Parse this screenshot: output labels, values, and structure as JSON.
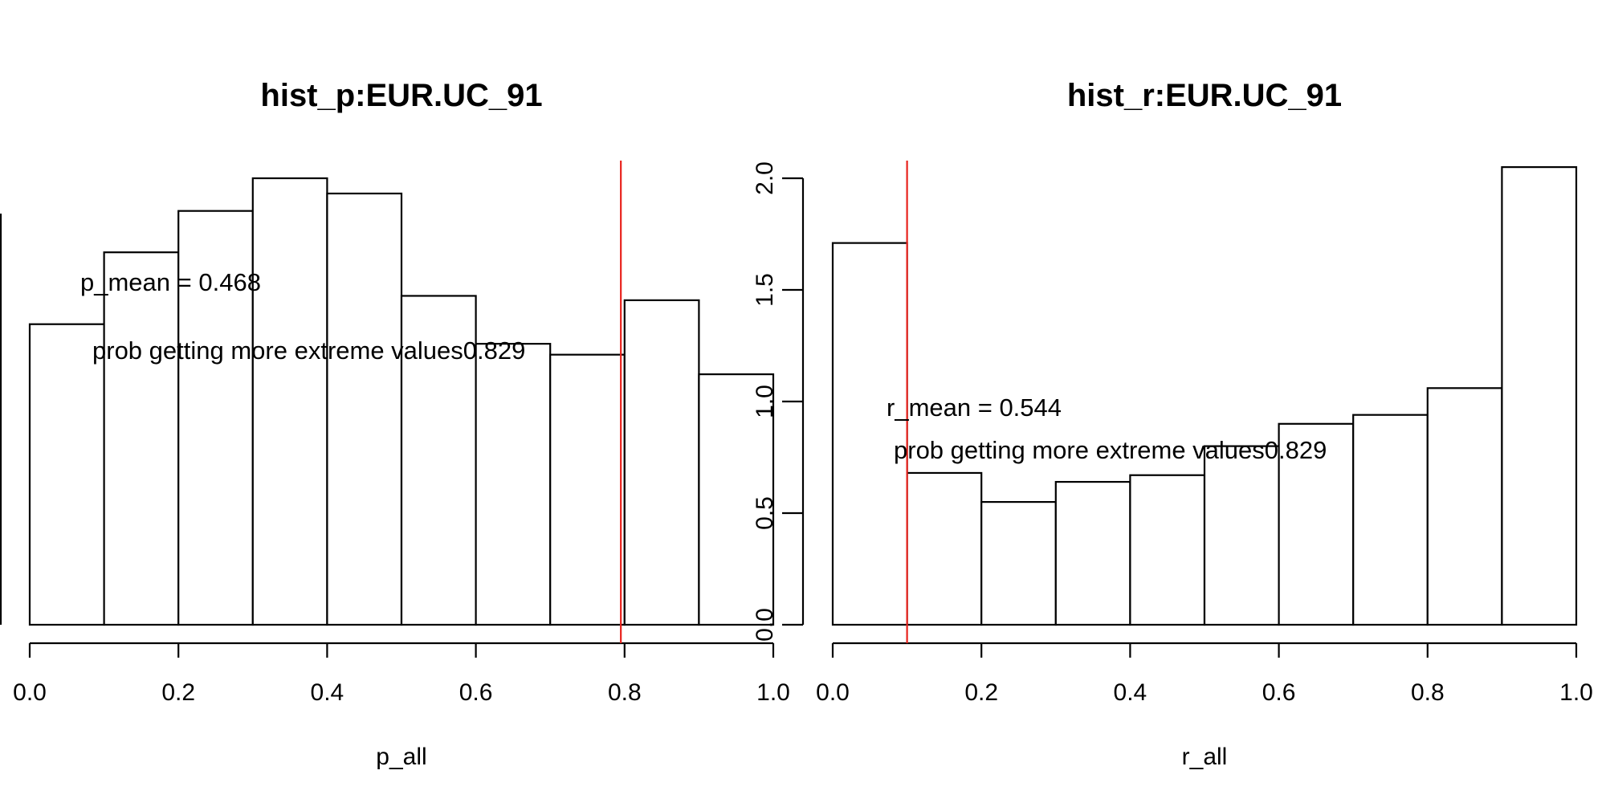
{
  "chart_data": [
    {
      "type": "bar",
      "title": "hist_p:EUR.UC_91",
      "xlabel": "p_all",
      "ylabel": "",
      "bin_edges": [
        0.0,
        0.1,
        0.2,
        0.3,
        0.4,
        0.5,
        0.6,
        0.7,
        0.8,
        0.9,
        1.0
      ],
      "values": [
        1.38,
        1.71,
        1.9,
        2.05,
        1.98,
        1.51,
        1.29,
        1.24,
        1.49,
        1.15
      ],
      "xlim": [
        0,
        1
      ],
      "ylim": [
        0,
        2.05
      ],
      "x_ticks": [
        "0.0",
        "0.2",
        "0.4",
        "0.6",
        "0.8",
        "1.0"
      ],
      "y_ticks": [],
      "reference_line": {
        "x": 0.795,
        "color": "#e8221c"
      },
      "annotations": [
        "p_mean = 0.468",
        "prob getting more extreme values0.829"
      ]
    },
    {
      "type": "bar",
      "title": "hist_r:EUR.UC_91",
      "xlabel": "r_all",
      "ylabel": "",
      "bin_edges": [
        0.0,
        0.1,
        0.2,
        0.3,
        0.4,
        0.5,
        0.6,
        0.7,
        0.8,
        0.9,
        1.0
      ],
      "values": [
        1.71,
        0.68,
        0.55,
        0.64,
        0.67,
        0.8,
        0.9,
        0.94,
        1.06,
        2.05
      ],
      "xlim": [
        0,
        1
      ],
      "ylim": [
        0,
        2.0
      ],
      "x_ticks": [
        "0.0",
        "0.2",
        "0.4",
        "0.6",
        "0.8",
        "1.0"
      ],
      "y_ticks": [
        "0.0",
        "0.5",
        "1.0",
        "1.5",
        "2.0"
      ],
      "reference_line": {
        "x": 0.1,
        "color": "#e8221c"
      },
      "annotations": [
        "r_mean = 0.544",
        "prob getting more extreme values0.829"
      ]
    }
  ]
}
